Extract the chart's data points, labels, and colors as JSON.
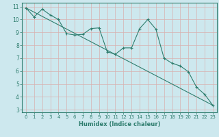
{
  "xlabel": "Humidex (Indice chaleur)",
  "bg_color": "#cde8ee",
  "grid_color": "#b0cdd4",
  "line_color": "#2e7d6e",
  "xlim": [
    -0.5,
    23.5
  ],
  "ylim": [
    2.8,
    11.3
  ],
  "xticks": [
    0,
    1,
    2,
    3,
    4,
    5,
    6,
    7,
    8,
    9,
    10,
    11,
    12,
    13,
    14,
    15,
    16,
    17,
    18,
    19,
    20,
    21,
    22,
    23
  ],
  "yticks": [
    3,
    4,
    5,
    6,
    7,
    8,
    9,
    10,
    11
  ],
  "series1_x": [
    0,
    1,
    2,
    3,
    4,
    5,
    6,
    7,
    8,
    9,
    10,
    11,
    12,
    13,
    14,
    15,
    16,
    17,
    18,
    19,
    20,
    21,
    22,
    23
  ],
  "series1_y": [
    10.9,
    10.2,
    10.8,
    10.35,
    10.0,
    8.9,
    8.8,
    8.85,
    9.3,
    9.35,
    7.5,
    7.3,
    7.8,
    7.8,
    9.3,
    10.0,
    9.25,
    7.0,
    6.6,
    6.4,
    5.95,
    4.75,
    4.2,
    3.35
  ],
  "series2_x": [
    0,
    23
  ],
  "series2_y": [
    10.9,
    3.35
  ]
}
